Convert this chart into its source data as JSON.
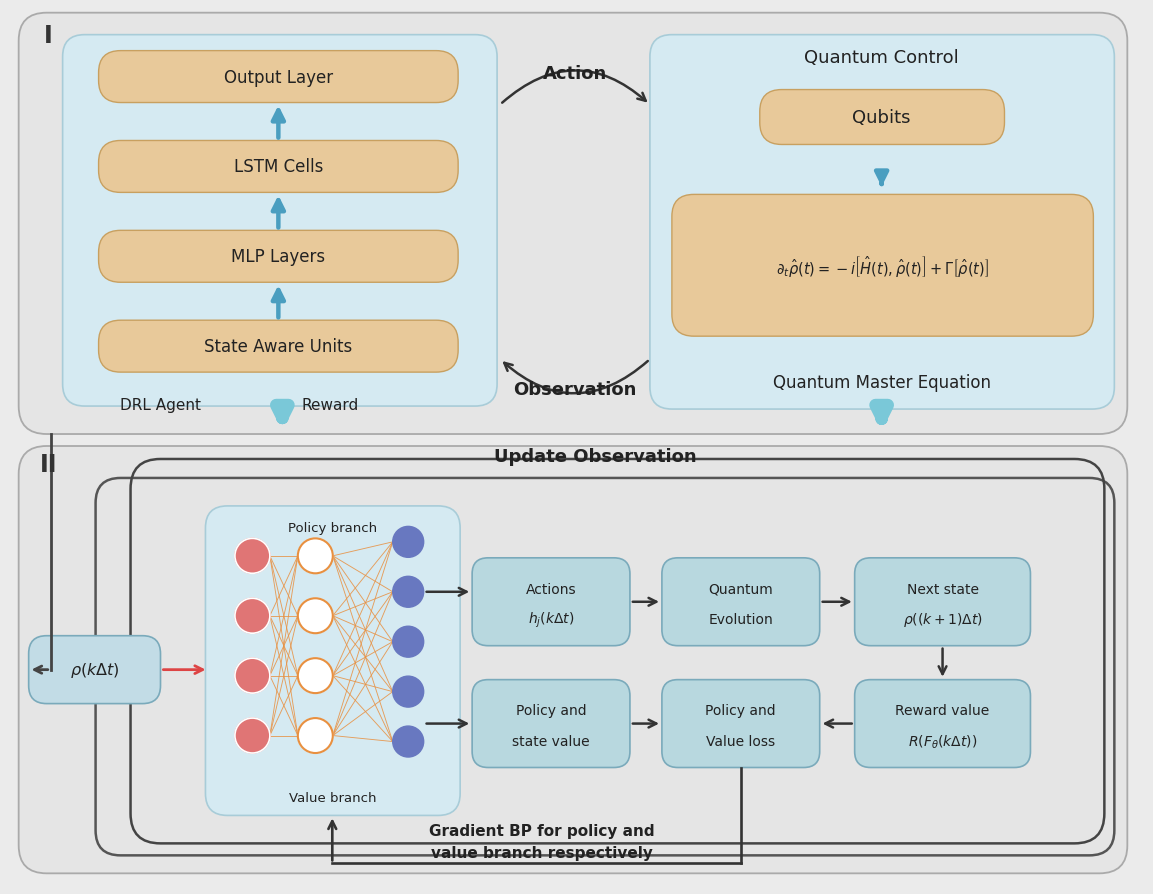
{
  "bg_color": "#ebebeb",
  "panel_bg_light": "#d5eaf2",
  "box_orange": "#e8c99a",
  "box_teal": "#b8d8df",
  "outer_ec": "#bbbbbb",
  "label_I": "I",
  "label_II": "II",
  "layers": [
    "Output Layer",
    "LSTM Cells",
    "MLP Layers",
    "State Aware Units"
  ],
  "drl_label": "DRL Agent",
  "reward_label": "Reward",
  "qc_title": "Quantum Control",
  "qubits_label": "Qubits",
  "qme_label": "Quantum Master Equation",
  "equation": "$\\partial_t\\hat{\\rho}(t) = -i\\left[\\hat{H}(t),\\hat{\\rho}(t)\\right] + \\Gamma\\left[\\hat{\\rho}(t)\\right]$",
  "action_label": "Action",
  "observation_label": "Observation",
  "update_obs_label": "Update Observation",
  "rho_label": "$\\rho(k\\Delta t)$",
  "policy_branch": "Policy branch",
  "value_branch": "Value branch",
  "gradient_label": "Gradient BP for policy and\nvalue branch respectively",
  "blue_arrow_color": "#7ac8d8",
  "arrow_dark": "#333333",
  "arrow_red": "#dd4444"
}
